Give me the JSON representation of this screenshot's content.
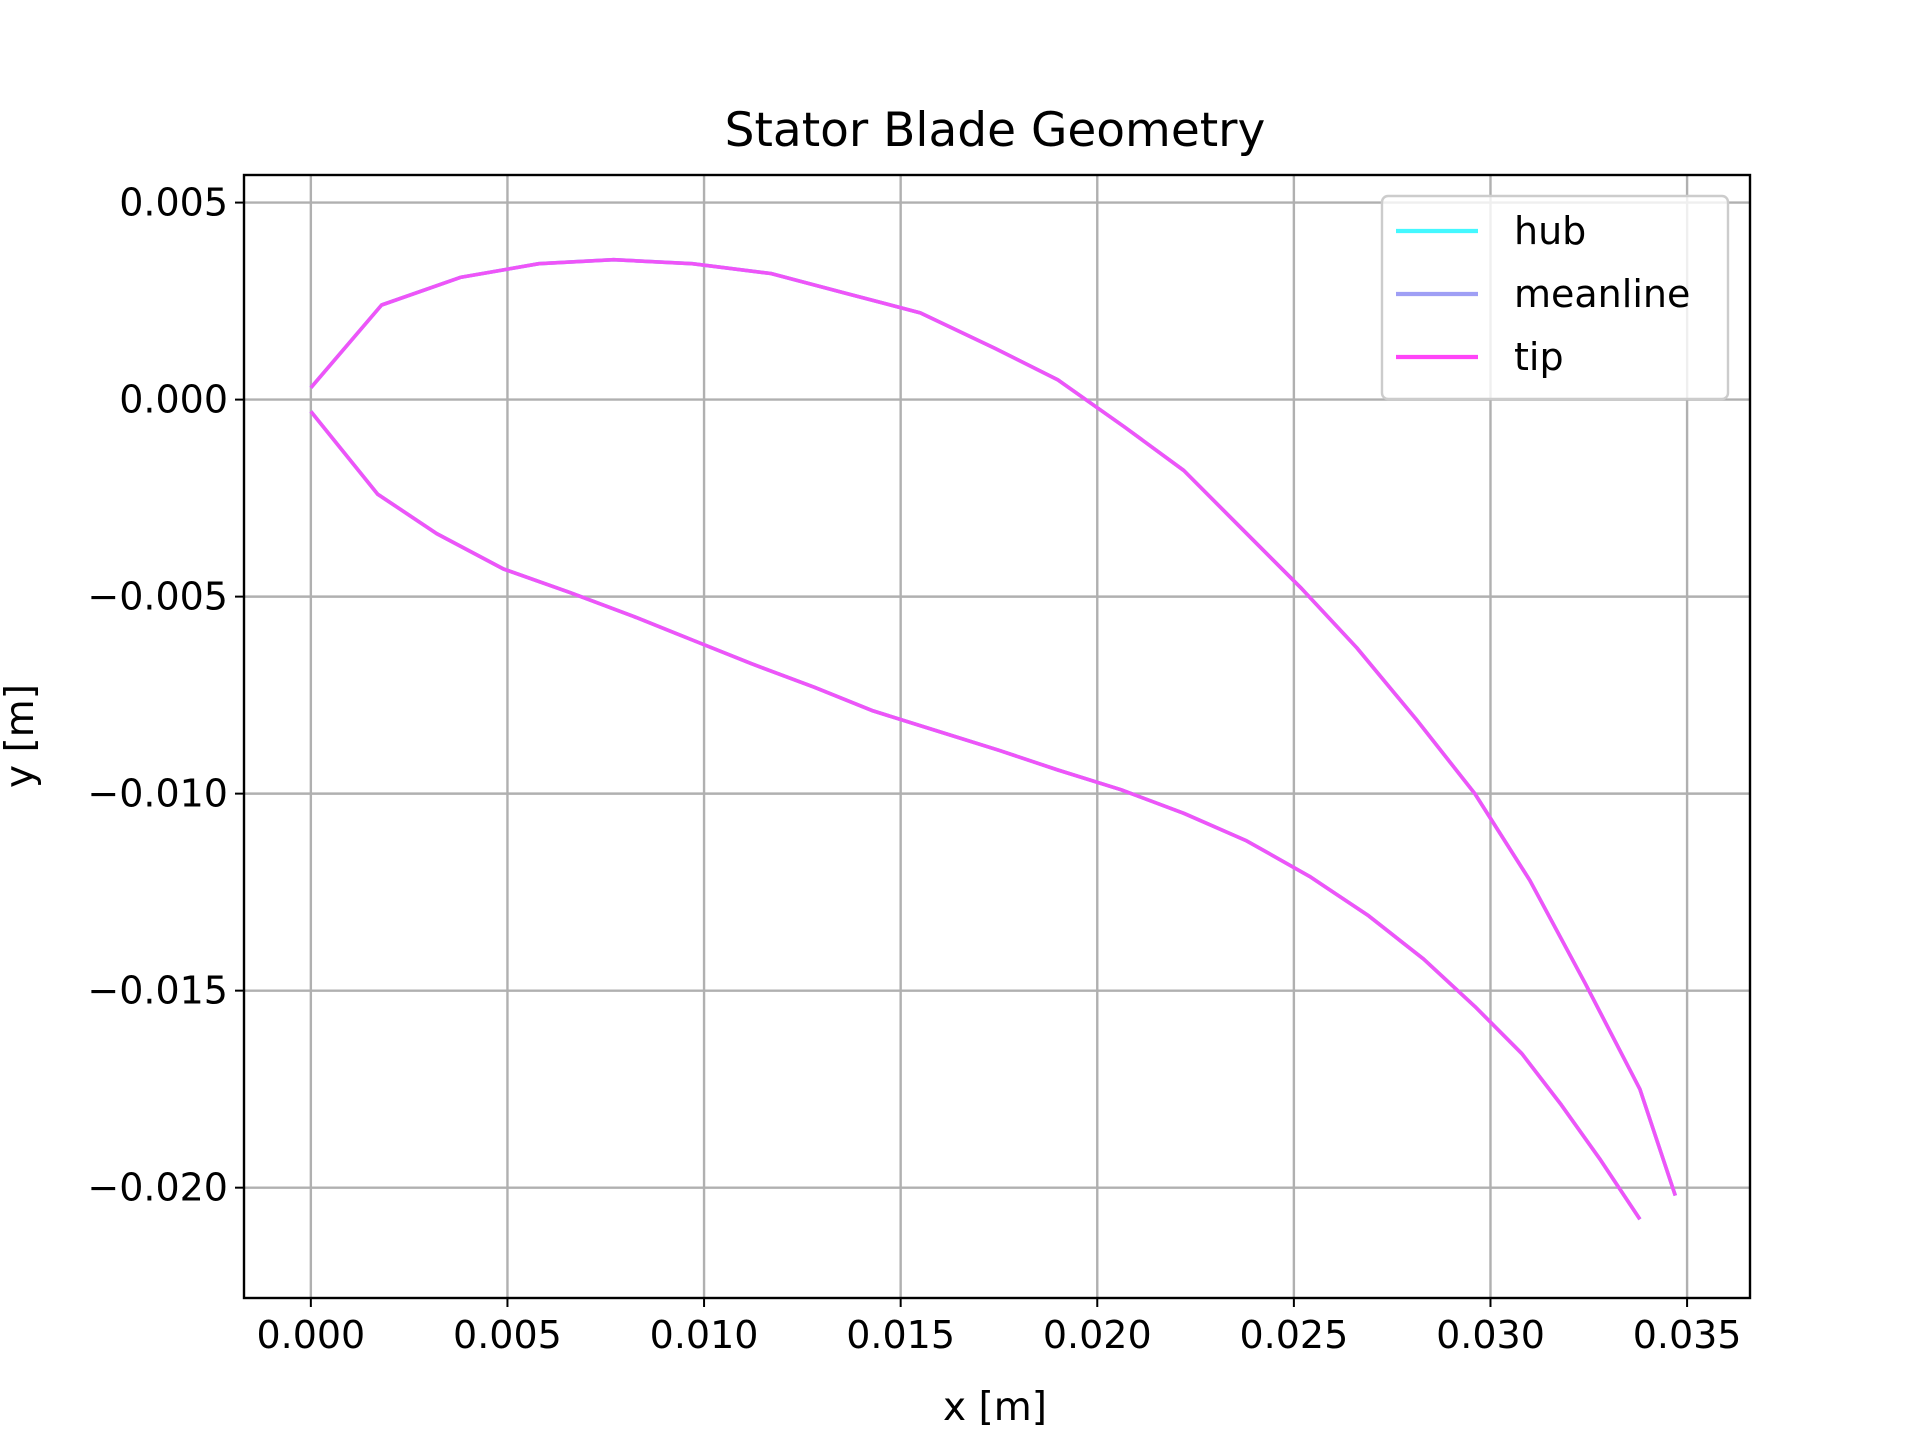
{
  "chart_data": {
    "type": "line",
    "title": "Stator Blade Geometry",
    "xlabel": "x [m]",
    "ylabel": "y [m]",
    "xlim": [
      -0.0017,
      0.0366
    ],
    "ylim": [
      -0.0228,
      0.0057
    ],
    "xticks": [
      0.0,
      0.005,
      0.01,
      0.015,
      0.02,
      0.025,
      0.03,
      0.035
    ],
    "xtick_labels": [
      "0.000",
      "0.005",
      "0.010",
      "0.015",
      "0.020",
      "0.025",
      "0.030",
      "0.035"
    ],
    "yticks": [
      0.005,
      0.0,
      -0.005,
      -0.01,
      -0.015,
      -0.02
    ],
    "ytick_labels": [
      "0.005",
      "0.000",
      "−0.005",
      "−0.010",
      "−0.015",
      "−0.020"
    ],
    "grid": true,
    "legend_position": "top-right",
    "series": [
      {
        "name": "hub",
        "color": "#44f8ff",
        "suction_side": {
          "x": [
            0.0,
            0.0018,
            0.0038,
            0.0058,
            0.0077,
            0.0097,
            0.0117,
            0.0136,
            0.0155,
            0.0174,
            0.019,
            0.0207,
            0.0222,
            0.0236,
            0.0252,
            0.0266,
            0.0281,
            0.0296,
            0.031,
            0.0324,
            0.0338,
            0.0347
          ],
          "y": [
            0.0003,
            0.0024,
            0.0031,
            0.00345,
            0.00355,
            0.00345,
            0.0032,
            0.0027,
            0.0022,
            0.0013,
            0.0005,
            -0.0007,
            -0.0018,
            -0.0032,
            -0.0048,
            -0.0063,
            -0.0081,
            -0.01,
            -0.0122,
            -0.0148,
            -0.0175,
            -0.0202
          ]
        },
        "pressure_side": {
          "x": [
            0.0,
            0.0017,
            0.0032,
            0.0049,
            0.0066,
            0.0082,
            0.0097,
            0.0112,
            0.0128,
            0.0143,
            0.0159,
            0.0175,
            0.019,
            0.0206,
            0.0222,
            0.0238,
            0.0254,
            0.0269,
            0.0283,
            0.0296,
            0.0308,
            0.0318,
            0.0328,
            0.0338
          ],
          "y": [
            -0.0003,
            -0.0024,
            -0.0034,
            -0.0043,
            -0.0049,
            -0.0055,
            -0.0061,
            -0.0067,
            -0.0073,
            -0.0079,
            -0.0084,
            -0.0089,
            -0.0094,
            -0.0099,
            -0.0105,
            -0.0112,
            -0.0121,
            -0.0131,
            -0.0142,
            -0.0154,
            -0.0166,
            -0.0179,
            -0.0193,
            -0.0208
          ]
        }
      },
      {
        "name": "meanline",
        "color": "#9f9ff5",
        "suction_side": {
          "x": [
            0.0,
            0.0018,
            0.0038,
            0.0058,
            0.0077,
            0.0097,
            0.0117,
            0.0136,
            0.0155,
            0.0174,
            0.019,
            0.0207,
            0.0222,
            0.0236,
            0.0252,
            0.0266,
            0.0281,
            0.0296,
            0.031,
            0.0324,
            0.0338,
            0.0347
          ],
          "y": [
            0.0003,
            0.0024,
            0.0031,
            0.00345,
            0.00355,
            0.00345,
            0.0032,
            0.0027,
            0.0022,
            0.0013,
            0.0005,
            -0.0007,
            -0.0018,
            -0.0032,
            -0.0048,
            -0.0063,
            -0.0081,
            -0.01,
            -0.0122,
            -0.0148,
            -0.0175,
            -0.0202
          ]
        },
        "pressure_side": {
          "x": [
            0.0,
            0.0017,
            0.0032,
            0.0049,
            0.0066,
            0.0082,
            0.0097,
            0.0112,
            0.0128,
            0.0143,
            0.0159,
            0.0175,
            0.019,
            0.0206,
            0.0222,
            0.0238,
            0.0254,
            0.0269,
            0.0283,
            0.0296,
            0.0308,
            0.0318,
            0.0328,
            0.0338
          ],
          "y": [
            -0.0003,
            -0.0024,
            -0.0034,
            -0.0043,
            -0.0049,
            -0.0055,
            -0.0061,
            -0.0067,
            -0.0073,
            -0.0079,
            -0.0084,
            -0.0089,
            -0.0094,
            -0.0099,
            -0.0105,
            -0.0112,
            -0.0121,
            -0.0131,
            -0.0142,
            -0.0154,
            -0.0166,
            -0.0179,
            -0.0193,
            -0.0208
          ]
        }
      },
      {
        "name": "tip",
        "color": "#ff44f8",
        "suction_side": {
          "x": [
            0.0,
            0.0018,
            0.0038,
            0.0058,
            0.0077,
            0.0097,
            0.0117,
            0.0136,
            0.0155,
            0.0174,
            0.019,
            0.0207,
            0.0222,
            0.0236,
            0.0252,
            0.0266,
            0.0281,
            0.0296,
            0.031,
            0.0324,
            0.0338,
            0.0347
          ],
          "y": [
            0.0003,
            0.0024,
            0.0031,
            0.00345,
            0.00355,
            0.00345,
            0.0032,
            0.0027,
            0.0022,
            0.0013,
            0.0005,
            -0.0007,
            -0.0018,
            -0.0032,
            -0.0048,
            -0.0063,
            -0.0081,
            -0.01,
            -0.0122,
            -0.0148,
            -0.0175,
            -0.0202
          ]
        },
        "pressure_side": {
          "x": [
            0.0,
            0.0017,
            0.0032,
            0.0049,
            0.0066,
            0.0082,
            0.0097,
            0.0112,
            0.0128,
            0.0143,
            0.0159,
            0.0175,
            0.019,
            0.0206,
            0.0222,
            0.0238,
            0.0254,
            0.0269,
            0.0283,
            0.0296,
            0.0308,
            0.0318,
            0.0328,
            0.0338
          ],
          "y": [
            -0.0003,
            -0.0024,
            -0.0034,
            -0.0043,
            -0.0049,
            -0.0055,
            -0.0061,
            -0.0067,
            -0.0073,
            -0.0079,
            -0.0084,
            -0.0089,
            -0.0094,
            -0.0099,
            -0.0105,
            -0.0112,
            -0.0121,
            -0.0131,
            -0.0142,
            -0.0154,
            -0.0166,
            -0.0179,
            -0.0193,
            -0.0208
          ]
        }
      }
    ]
  }
}
